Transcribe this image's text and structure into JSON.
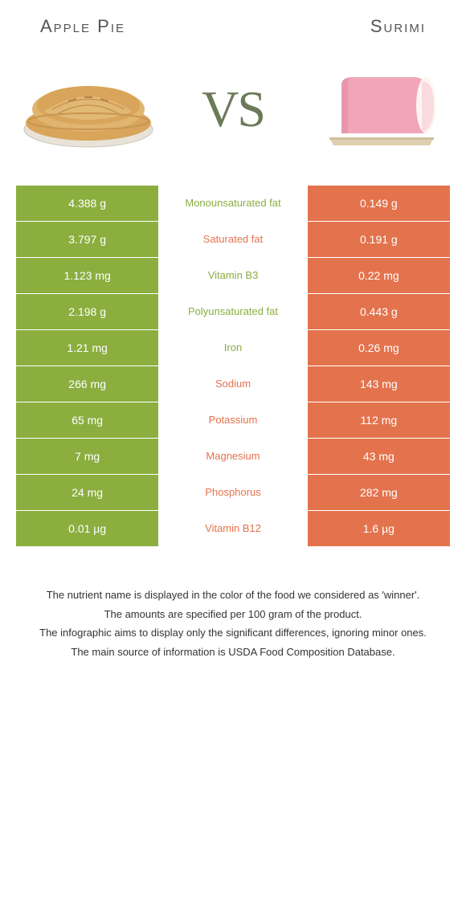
{
  "header": {
    "left_title": "Apple Pie",
    "right_title": "Surimi",
    "vs_text": "VS"
  },
  "colors": {
    "green": "#8bae3f",
    "orange": "#e3734d",
    "text_gray": "#555555",
    "vs_color": "#6b7a58",
    "pie_crust": "#d8a55a",
    "pie_crust_dark": "#b8824a",
    "pie_dish": "#e8e2d8",
    "surimi_pink": "#f0a6b8",
    "surimi_white": "#fdf5ee",
    "surimi_plate": "#e0cfb0"
  },
  "rows": [
    {
      "left": "4.388 g",
      "name": "Monounsaturated fat",
      "right": "0.149 g",
      "winner": "green"
    },
    {
      "left": "3.797 g",
      "name": "Saturated fat",
      "right": "0.191 g",
      "winner": "orange"
    },
    {
      "left": "1.123 mg",
      "name": "Vitamin B3",
      "right": "0.22 mg",
      "winner": "green"
    },
    {
      "left": "2.198 g",
      "name": "Polyunsaturated fat",
      "right": "0.443 g",
      "winner": "green"
    },
    {
      "left": "1.21 mg",
      "name": "Iron",
      "right": "0.26 mg",
      "winner": "green"
    },
    {
      "left": "266 mg",
      "name": "Sodium",
      "right": "143 mg",
      "winner": "orange"
    },
    {
      "left": "65 mg",
      "name": "Potassium",
      "right": "112 mg",
      "winner": "orange"
    },
    {
      "left": "7 mg",
      "name": "Magnesium",
      "right": "43 mg",
      "winner": "orange"
    },
    {
      "left": "24 mg",
      "name": "Phosphorus",
      "right": "282 mg",
      "winner": "orange"
    },
    {
      "left": "0.01 µg",
      "name": "Vitamin B12",
      "right": "1.6 µg",
      "winner": "orange"
    }
  ],
  "footer": {
    "line1": "The nutrient name is displayed in the color of the food we considered as 'winner'.",
    "line2": "The amounts are specified per 100 gram of the product.",
    "line3": "The infographic aims to display only the significant differences, ignoring minor ones.",
    "line4": "The main source of information is USDA Food Composition Database."
  }
}
